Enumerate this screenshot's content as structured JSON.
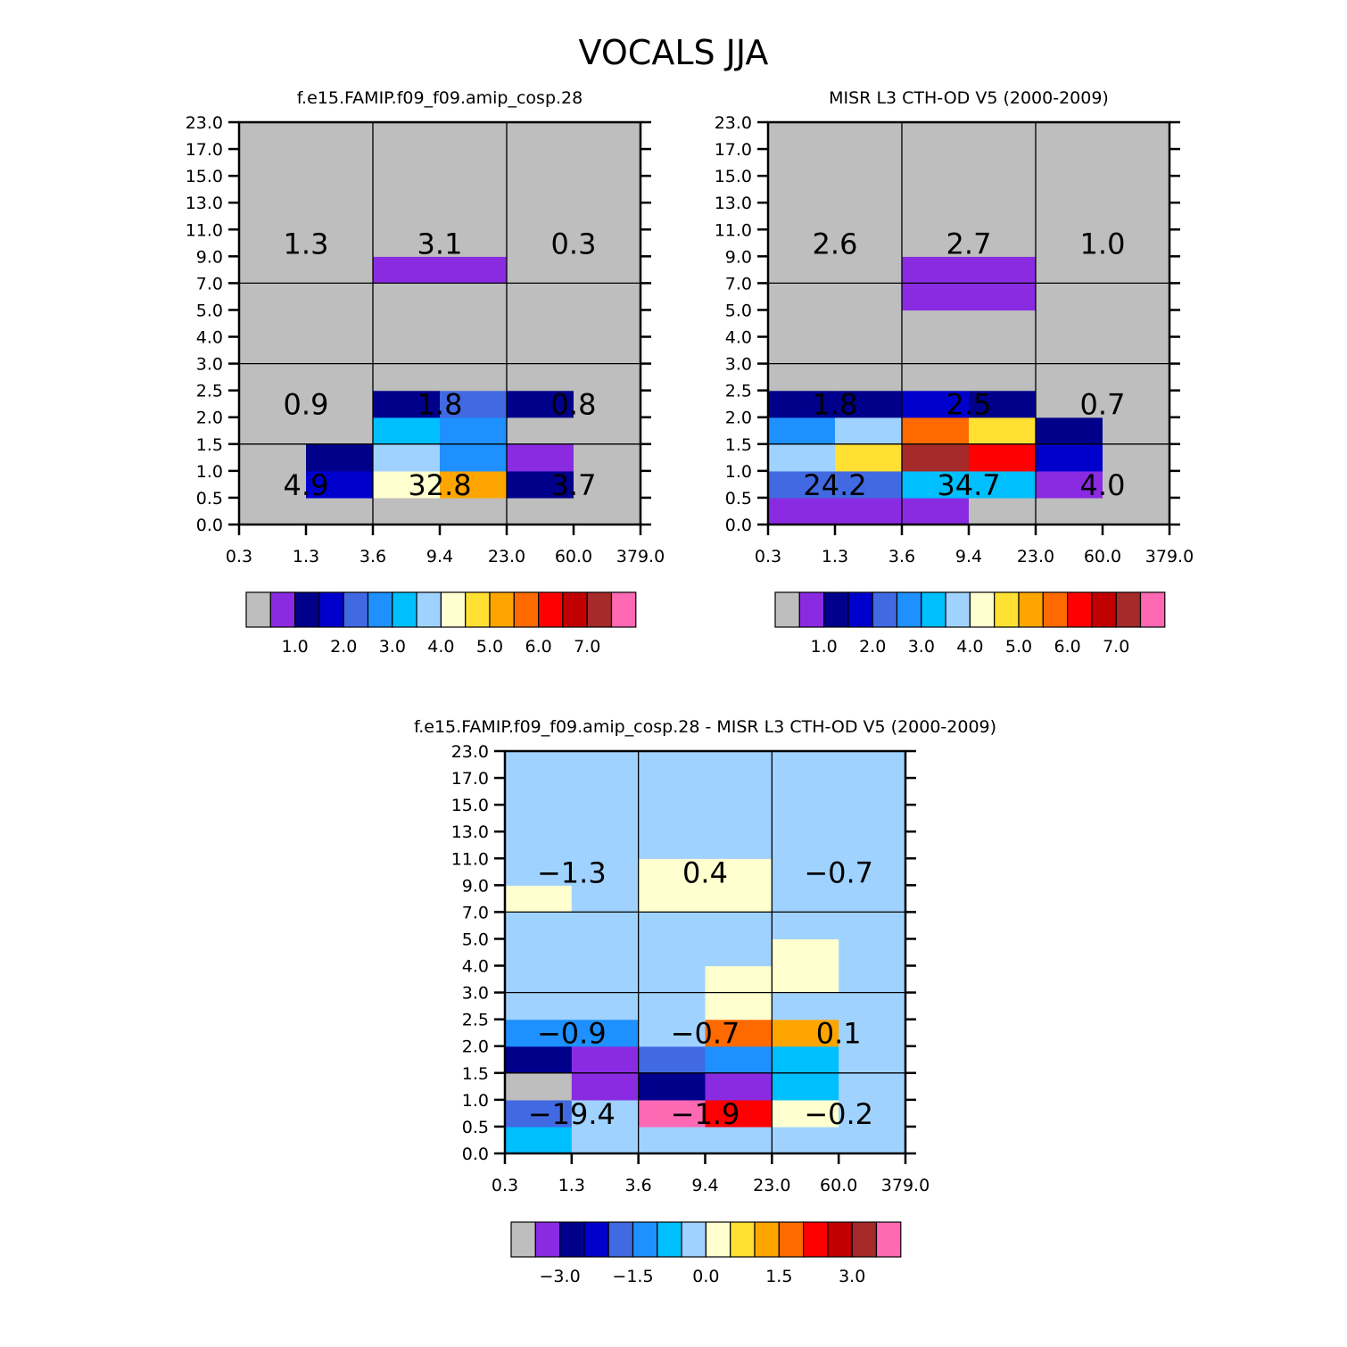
{
  "figure_title": "VOCALS JJA",
  "chart_data": [
    {
      "type": "heatmap",
      "title": "f.e15.FAMIP.f09_f09.amip_cosp.28",
      "x_ticks": [
        "0.3",
        "1.3",
        "3.6",
        "9.4",
        "23.0",
        "60.0",
        "379.0"
      ],
      "y_ticks": [
        "0.0",
        "0.5",
        "1.0",
        "1.5",
        "2.0",
        "2.5",
        "3.0",
        "4.0",
        "5.0",
        "7.0",
        "9.0",
        "11.0",
        "13.0",
        "15.0",
        "17.0",
        "23.0"
      ],
      "cells": [
        [
          0,
          0,
          0,
          0,
          0,
          0
        ],
        [
          0,
          3,
          8,
          10,
          2,
          0
        ],
        [
          0,
          2,
          7,
          5,
          1,
          0
        ],
        [
          0,
          0,
          6,
          5,
          0,
          0
        ],
        [
          0,
          0,
          2,
          4,
          2,
          0
        ],
        [
          0,
          0,
          0,
          0,
          0,
          0
        ],
        [
          0,
          0,
          0,
          0,
          0,
          0
        ],
        [
          0,
          0,
          0,
          0,
          0,
          0
        ],
        [
          0,
          0,
          0,
          0,
          0,
          0
        ],
        [
          0,
          0,
          1,
          1,
          0,
          0
        ],
        [
          0,
          0,
          0,
          0,
          0,
          0
        ],
        [
          0,
          0,
          0,
          0,
          0,
          0
        ],
        [
          0,
          0,
          0,
          0,
          0,
          0
        ],
        [
          0,
          0,
          0,
          0,
          0,
          0
        ],
        [
          0,
          0,
          0,
          0,
          0,
          0
        ]
      ],
      "box_totals": [
        {
          "value": "4.9",
          "x": 1,
          "y": 0
        },
        {
          "value": "32.8",
          "x": 2,
          "y": 0
        },
        {
          "value": "3.7",
          "x": 3,
          "y": 0
        },
        {
          "value": "0.9",
          "x": 1,
          "y": 1
        },
        {
          "value": "1.8",
          "x": 2,
          "y": 1
        },
        {
          "value": "0.8",
          "x": 3,
          "y": 1
        },
        {
          "value": "1.3",
          "x": 1,
          "y": 2
        },
        {
          "value": "3.1",
          "x": 2,
          "y": 2
        },
        {
          "value": "0.3",
          "x": 3,
          "y": 2
        }
      ],
      "colorbar": {
        "colors": [
          "#bebebe",
          "#8a2be2",
          "#00008b",
          "#0000cd",
          "#4169e1",
          "#1e90ff",
          "#00bfff",
          "#a0d2ff",
          "#ffffd0",
          "#ffe033",
          "#ffa500",
          "#ff6a00",
          "#ff0000",
          "#c00000",
          "#a52a2a",
          "#ff69b4"
        ],
        "labels": [
          "1.0",
          "2.0",
          "3.0",
          "4.0",
          "5.0",
          "6.0",
          "7.0"
        ]
      }
    },
    {
      "type": "heatmap",
      "title": "MISR L3 CTH-OD V5 (2000-2009)",
      "x_ticks": [
        "0.3",
        "1.3",
        "3.6",
        "9.4",
        "23.0",
        "60.0",
        "379.0"
      ],
      "y_ticks": [
        "0.0",
        "0.5",
        "1.0",
        "1.5",
        "2.0",
        "2.5",
        "3.0",
        "4.0",
        "5.0",
        "7.0",
        "9.0",
        "11.0",
        "13.0",
        "15.0",
        "17.0",
        "23.0"
      ],
      "cells": [
        [
          1,
          1,
          1,
          0,
          0,
          0
        ],
        [
          4,
          4,
          6,
          6,
          1,
          0
        ],
        [
          7,
          9,
          14,
          12,
          3,
          0
        ],
        [
          5,
          7,
          11,
          9,
          2,
          0
        ],
        [
          2,
          2,
          3,
          2,
          0,
          0
        ],
        [
          0,
          0,
          0,
          0,
          0,
          0
        ],
        [
          0,
          0,
          0,
          0,
          0,
          0
        ],
        [
          0,
          0,
          0,
          0,
          0,
          0
        ],
        [
          0,
          0,
          1,
          1,
          0,
          0
        ],
        [
          0,
          0,
          1,
          1,
          0,
          0
        ],
        [
          0,
          0,
          0,
          0,
          0,
          0
        ],
        [
          0,
          0,
          0,
          0,
          0,
          0
        ],
        [
          0,
          0,
          0,
          0,
          0,
          0
        ],
        [
          0,
          0,
          0,
          0,
          0,
          0
        ],
        [
          0,
          0,
          0,
          0,
          0,
          0
        ]
      ],
      "box_totals": [
        {
          "value": "24.2",
          "x": 1,
          "y": 0
        },
        {
          "value": "34.7",
          "x": 2,
          "y": 0
        },
        {
          "value": "4.0",
          "x": 3,
          "y": 0
        },
        {
          "value": "1.8",
          "x": 1,
          "y": 1
        },
        {
          "value": "2.5",
          "x": 2,
          "y": 1
        },
        {
          "value": "0.7",
          "x": 3,
          "y": 1
        },
        {
          "value": "2.6",
          "x": 1,
          "y": 2
        },
        {
          "value": "2.7",
          "x": 2,
          "y": 2
        },
        {
          "value": "1.0",
          "x": 3,
          "y": 2
        }
      ],
      "colorbar": {
        "colors": [
          "#bebebe",
          "#8a2be2",
          "#00008b",
          "#0000cd",
          "#4169e1",
          "#1e90ff",
          "#00bfff",
          "#a0d2ff",
          "#ffffd0",
          "#ffe033",
          "#ffa500",
          "#ff6a00",
          "#ff0000",
          "#c00000",
          "#a52a2a",
          "#ff69b4"
        ],
        "labels": [
          "1.0",
          "2.0",
          "3.0",
          "4.0",
          "5.0",
          "6.0",
          "7.0"
        ]
      }
    },
    {
      "type": "heatmap",
      "title": "f.e15.FAMIP.f09_f09.amip_cosp.28 - MISR L3 CTH-OD V5 (2000-2009)",
      "x_ticks": [
        "0.3",
        "1.3",
        "3.6",
        "9.4",
        "23.0",
        "60.0",
        "379.0"
      ],
      "y_ticks": [
        "0.0",
        "0.5",
        "1.0",
        "1.5",
        "2.0",
        "2.5",
        "3.0",
        "4.0",
        "5.0",
        "7.0",
        "9.0",
        "11.0",
        "13.0",
        "15.0",
        "17.0",
        "23.0"
      ],
      "cells": [
        [
          6,
          7,
          7,
          7,
          7,
          7
        ],
        [
          4,
          7,
          15,
          12,
          8,
          7
        ],
        [
          0,
          1,
          2,
          1,
          6,
          7
        ],
        [
          2,
          1,
          4,
          5,
          6,
          7
        ],
        [
          5,
          5,
          7,
          11,
          10,
          7
        ],
        [
          7,
          7,
          7,
          8,
          7,
          7
        ],
        [
          7,
          7,
          7,
          8,
          8,
          7
        ],
        [
          7,
          7,
          7,
          7,
          8,
          7
        ],
        [
          7,
          7,
          7,
          7,
          7,
          7
        ],
        [
          8,
          7,
          8,
          8,
          7,
          7
        ],
        [
          7,
          7,
          8,
          8,
          7,
          7
        ],
        [
          7,
          7,
          7,
          7,
          7,
          7
        ],
        [
          7,
          7,
          7,
          7,
          7,
          7
        ],
        [
          7,
          7,
          7,
          7,
          7,
          7
        ],
        [
          7,
          7,
          7,
          7,
          7,
          7
        ]
      ],
      "box_totals": [
        {
          "value": "-19.4",
          "x": 1,
          "y": 0
        },
        {
          "value": "-1.9",
          "x": 2,
          "y": 0
        },
        {
          "value": "-0.2",
          "x": 3,
          "y": 0
        },
        {
          "value": "-0.9",
          "x": 1,
          "y": 1
        },
        {
          "value": "-0.7",
          "x": 2,
          "y": 1
        },
        {
          "value": "0.1",
          "x": 3,
          "y": 1
        },
        {
          "value": "-1.3",
          "x": 1,
          "y": 2
        },
        {
          "value": "0.4",
          "x": 2,
          "y": 2
        },
        {
          "value": "-0.7",
          "x": 3,
          "y": 2
        }
      ],
      "colorbar": {
        "colors": [
          "#bebebe",
          "#8a2be2",
          "#00008b",
          "#0000cd",
          "#4169e1",
          "#1e90ff",
          "#00bfff",
          "#a0d2ff",
          "#ffffd0",
          "#ffe033",
          "#ffa500",
          "#ff6a00",
          "#ff0000",
          "#c00000",
          "#a52a2a",
          "#ff69b4"
        ],
        "labels": [
          "-3.0",
          "-1.5",
          "0.0",
          "1.5",
          "3.0"
        ]
      }
    }
  ]
}
